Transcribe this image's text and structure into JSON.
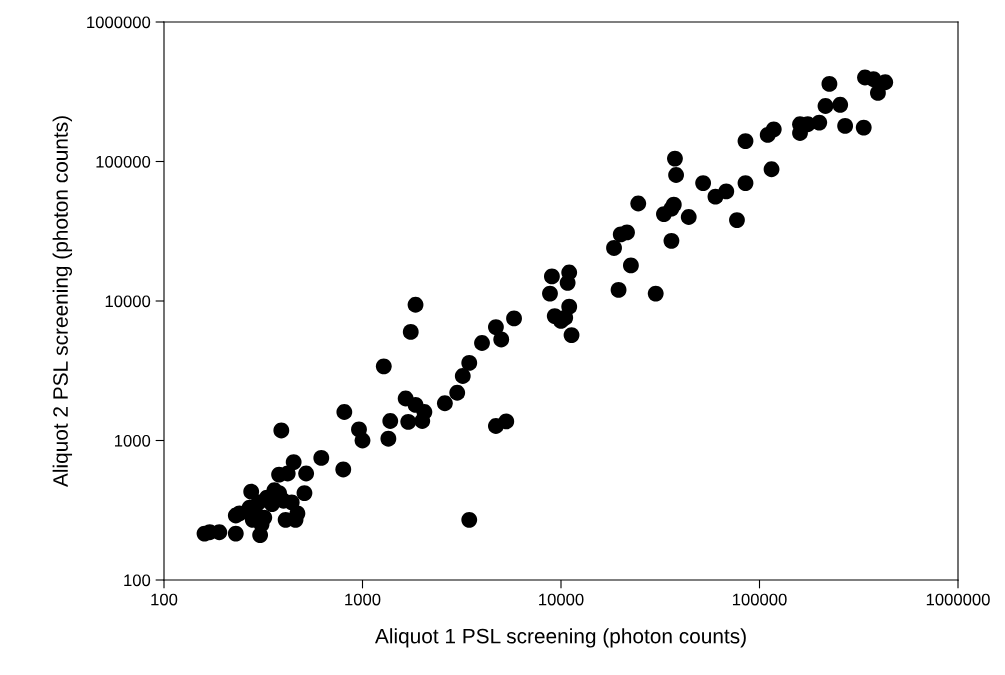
{
  "chart_data": {
    "type": "scatter",
    "xlabel": "Aliquot 1 PSL screening (photon counts)",
    "ylabel": "Aliquot 2 PSL screening (photon counts)",
    "log": "xy",
    "grid": false,
    "marker": "circle",
    "xlim": [
      100,
      1000000
    ],
    "ylim": [
      100,
      1000000
    ],
    "xticks": [
      100,
      1000,
      10000,
      100000,
      1000000
    ],
    "yticks": [
      100,
      1000,
      10000,
      100000,
      1000000
    ],
    "series": [
      {
        "color": "#000000",
        "x": [
          160,
          170,
          190,
          230,
          230,
          240,
          270,
          275,
          280,
          290,
          300,
          305,
          310,
          320,
          330,
          350,
          360,
          380,
          380,
          390,
          400,
          410,
          420,
          440,
          450,
          460,
          470,
          510,
          520,
          620,
          800,
          810,
          960,
          1000,
          1280,
          1350,
          1380,
          1650,
          1700,
          1750,
          1850,
          1850,
          2000,
          2050,
          2600,
          3000,
          3200,
          3450,
          3450,
          4000,
          4700,
          4700,
          5000,
          5300,
          5800,
          8800,
          9000,
          9300,
          10000,
          10500,
          10800,
          11000,
          11000,
          11300,
          18500,
          19500,
          20000,
          21500,
          22500,
          24500,
          30000,
          33000,
          36000,
          36000,
          37000,
          37500,
          38000,
          44000,
          52000,
          60000,
          68000,
          77000,
          85000,
          85000,
          110000,
          115000,
          118000,
          160000,
          160000,
          175000,
          200000,
          215000,
          225000,
          255000,
          270000,
          335000,
          340000,
          375000,
          395000,
          430000
        ],
        "values": [
          215,
          220,
          220,
          215,
          290,
          300,
          330,
          430,
          270,
          300,
          360,
          210,
          250,
          280,
          390,
          350,
          440,
          420,
          570,
          1180,
          370,
          270,
          580,
          360,
          700,
          270,
          300,
          420,
          580,
          750,
          620,
          1600,
          1200,
          1000,
          3400,
          1030,
          1380,
          2000,
          1360,
          6000,
          9400,
          1800,
          1380,
          1600,
          1850,
          2200,
          2900,
          3600,
          270,
          5000,
          6500,
          1270,
          5300,
          1370,
          7500,
          11300,
          15000,
          7800,
          7200,
          7600,
          13500,
          16000,
          9100,
          5700,
          24000,
          12000,
          30000,
          31000,
          18000,
          50000,
          11300,
          42000,
          46000,
          27000,
          49000,
          105000,
          80000,
          40000,
          70000,
          56000,
          61000,
          38000,
          140000,
          70000,
          155000,
          88000,
          170000,
          160000,
          185000,
          185000,
          190000,
          250000,
          360000,
          255000,
          180000,
          175000,
          400000,
          390000,
          310000,
          370000
        ]
      }
    ]
  }
}
